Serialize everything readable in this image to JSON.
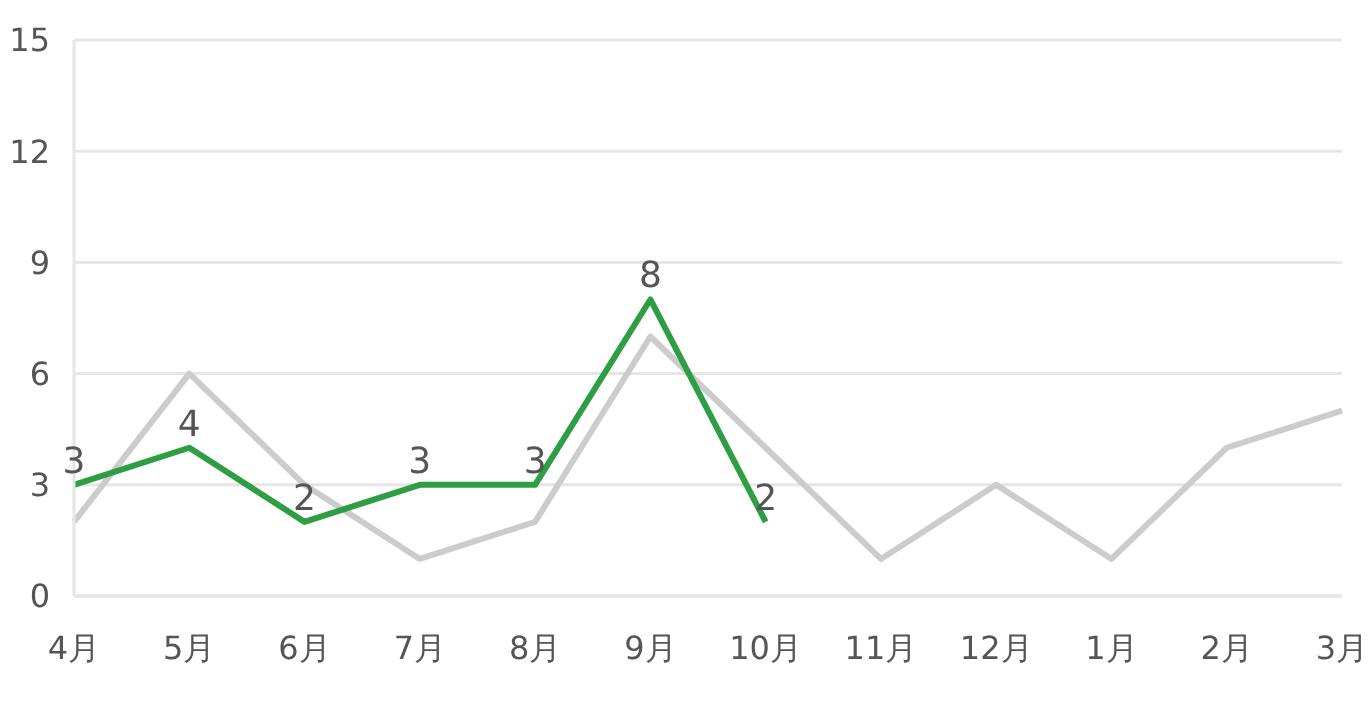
{
  "chart_data": {
    "type": "line",
    "categories": [
      "4月",
      "5月",
      "6月",
      "7月",
      "8月",
      "9月",
      "10月",
      "11月",
      "12月",
      "1月",
      "2月",
      "3月"
    ],
    "series": [
      {
        "color": "#cccccc",
        "values": [
          2,
          6,
          3,
          1,
          2,
          7,
          4,
          1,
          3,
          1,
          4,
          5
        ]
      },
      {
        "color": "#2e9e44",
        "values": [
          3,
          4,
          2,
          3,
          3,
          8,
          2,
          null,
          null,
          null,
          null,
          null
        ],
        "value_labels": [
          "3",
          "4",
          "2",
          "3",
          "3",
          "8",
          "2",
          null,
          null,
          null,
          null,
          null
        ]
      }
    ],
    "ylim": [
      0,
      15
    ],
    "yticks": [
      0,
      3,
      6,
      9,
      12,
      15
    ],
    "grid": "y",
    "marker": "none",
    "line_style": "solid"
  }
}
